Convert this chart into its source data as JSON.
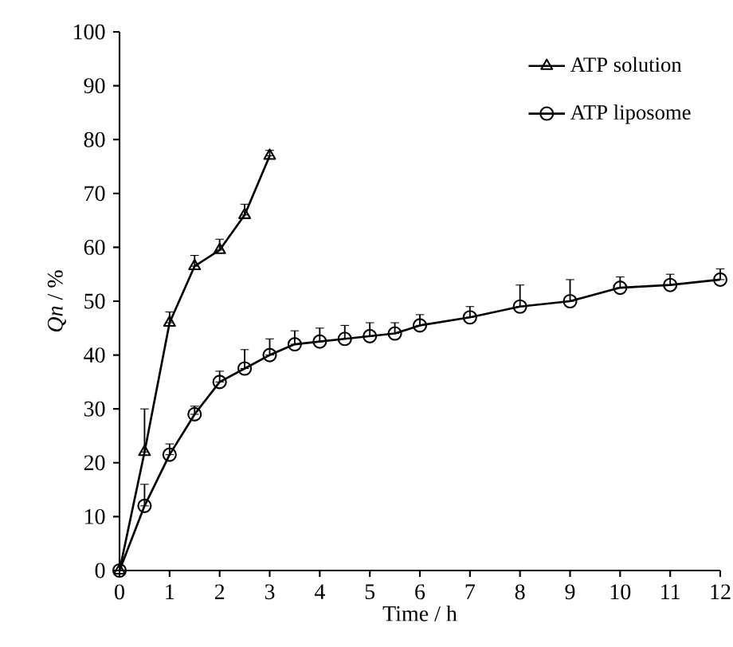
{
  "chart_data": {
    "type": "line",
    "xlabel": "Time / h",
    "ylabel": "*Qn* / %",
    "xlim": [
      0,
      12
    ],
    "ylim": [
      0,
      100
    ],
    "xticks": [
      0,
      1,
      2,
      3,
      4,
      5,
      6,
      7,
      8,
      9,
      10,
      11,
      12
    ],
    "yticks": [
      0,
      10,
      20,
      30,
      40,
      50,
      60,
      70,
      80,
      90,
      100
    ],
    "legend": "top right",
    "grid": false,
    "line_style": "solid",
    "series": [
      {
        "name": "ATP solution",
        "color": "#000000",
        "marker": "triangle",
        "x": [
          0,
          0.5,
          1,
          1.5,
          2,
          2.5,
          3
        ],
        "values": [
          0,
          22,
          46,
          56.5,
          59.5,
          66,
          77
        ],
        "errors": [
          null,
          [
            22,
            30
          ],
          [
            46,
            48
          ],
          [
            56.5,
            58.5
          ],
          [
            59.5,
            61.5
          ],
          [
            66,
            68
          ],
          [
            77,
            78
          ]
        ]
      },
      {
        "name": "ATP liposome",
        "color": "#000000",
        "marker": "circle",
        "x": [
          0,
          0.5,
          1,
          1.5,
          2,
          2.5,
          3,
          3.5,
          4,
          4.5,
          5,
          5.5,
          6,
          7,
          8,
          9,
          10,
          11,
          12
        ],
        "values": [
          0,
          12,
          21.5,
          29,
          35,
          37.5,
          40,
          42,
          42.5,
          43,
          43.5,
          44,
          45.5,
          47,
          49,
          50,
          52.5,
          53,
          54
        ],
        "errors": [
          null,
          [
            12,
            16
          ],
          [
            21.5,
            23.5
          ],
          [
            29,
            30.5
          ],
          [
            35,
            37
          ],
          [
            37.5,
            41
          ],
          [
            40,
            43
          ],
          [
            42,
            44.5
          ],
          [
            42.5,
            45
          ],
          [
            43,
            45.5
          ],
          [
            43.5,
            46
          ],
          [
            44,
            46
          ],
          [
            45.5,
            47.5
          ],
          [
            47,
            49
          ],
          [
            49,
            53
          ],
          [
            50,
            54
          ],
          [
            52.5,
            54.5
          ],
          [
            53,
            55
          ],
          [
            54,
            56
          ]
        ]
      }
    ]
  }
}
